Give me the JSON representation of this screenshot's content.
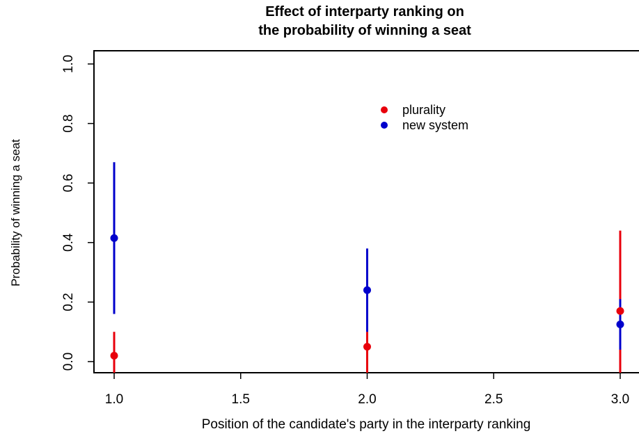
{
  "chart_data": {
    "type": "scatter",
    "title": [
      "Effect of interparty ranking on",
      "the probability of winning a seat"
    ],
    "xlabel": "Position of the candidate's party in the interparty ranking",
    "ylabel": "Probability of winning a seat",
    "xlim": [
      1.0,
      3.0
    ],
    "ylim": [
      0.0,
      1.0
    ],
    "x_ticks": [
      1.0,
      1.5,
      2.0,
      2.5,
      3.0
    ],
    "x_tick_labels": [
      "1.0",
      "1.5",
      "2.0",
      "2.5",
      "3.0"
    ],
    "y_ticks": [
      0.0,
      0.2,
      0.4,
      0.6,
      0.8,
      1.0
    ],
    "y_tick_labels": [
      "0.0",
      "0.2",
      "0.4",
      "0.6",
      "0.8",
      "1.0"
    ],
    "grid": false,
    "legend_position": "top-center",
    "series": [
      {
        "name": "plurality",
        "color": "#e8000b",
        "x": [
          1.0,
          2.0,
          3.0
        ],
        "y": [
          0.02,
          0.05,
          0.17
        ],
        "lower": [
          -0.05,
          -0.05,
          -0.05
        ],
        "upper": [
          0.1,
          0.1,
          0.44
        ]
      },
      {
        "name": "new system",
        "color": "#0000cc",
        "x": [
          1.0,
          2.0,
          3.0
        ],
        "y": [
          0.415,
          0.24,
          0.125
        ],
        "lower": [
          0.16,
          0.1,
          0.04
        ],
        "upper": [
          0.67,
          0.38,
          0.21
        ]
      }
    ]
  }
}
